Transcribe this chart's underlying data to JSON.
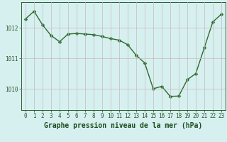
{
  "x": [
    0,
    1,
    2,
    3,
    4,
    5,
    6,
    7,
    8,
    9,
    10,
    11,
    12,
    13,
    14,
    15,
    16,
    17,
    18,
    19,
    20,
    21,
    22,
    23
  ],
  "y": [
    1012.3,
    1012.55,
    1012.1,
    1011.75,
    1011.55,
    1011.8,
    1011.82,
    1011.8,
    1011.78,
    1011.72,
    1011.65,
    1011.6,
    1011.45,
    1011.1,
    1010.85,
    1010.0,
    1010.08,
    1009.75,
    1009.76,
    1010.3,
    1010.5,
    1011.35,
    1012.2,
    1012.45
  ],
  "line_color": "#2d6a2d",
  "marker": "D",
  "marker_size": 2.5,
  "line_width": 1.0,
  "background_color": "#d6f0f0",
  "grid_color": "#c8b8b8",
  "xlabel": "Graphe pression niveau de la mer (hPa)",
  "xlabel_fontsize": 7,
  "xlabel_color": "#1a4a1a",
  "yticks": [
    1010,
    1011,
    1012
  ],
  "xticks": [
    0,
    1,
    2,
    3,
    4,
    5,
    6,
    7,
    8,
    9,
    10,
    11,
    12,
    13,
    14,
    15,
    16,
    17,
    18,
    19,
    20,
    21,
    22,
    23
  ],
  "tick_fontsize": 5.5,
  "tick_color": "#2d5a2d",
  "ylim": [
    1009.3,
    1012.85
  ],
  "xlim": [
    -0.5,
    23.5
  ]
}
